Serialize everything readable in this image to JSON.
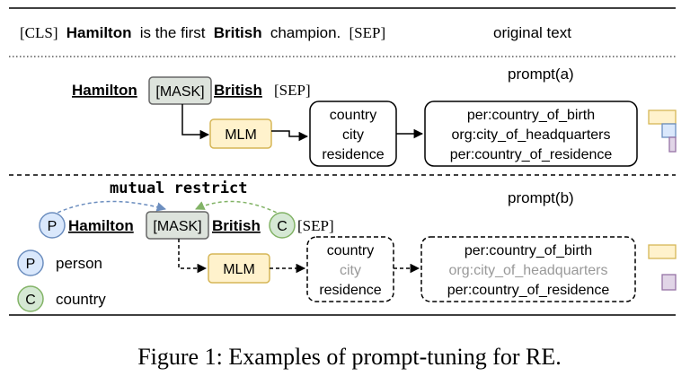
{
  "original": {
    "cls": "[CLS]",
    "w1": "Hamilton",
    "w2": "is the first",
    "w3": "British",
    "w4": "champion.",
    "sep": "[SEP]",
    "label": "original text"
  },
  "prompt_a": {
    "label": "prompt(a)",
    "subject": "Hamilton",
    "mask": "[MASK]",
    "object": "British",
    "sep": "[SEP]",
    "mlm": "MLM",
    "words": [
      "country",
      "city",
      "residence"
    ],
    "relations": [
      "per:country_of_birth",
      "org:city_of_headquarters",
      "per:country_of_residence"
    ]
  },
  "prompt_b": {
    "label": "prompt(b)",
    "mutual": "mutual restrict",
    "subject": "Hamilton",
    "mask": "[MASK]",
    "object": "British",
    "sep": "[SEP]",
    "mlm": "MLM",
    "p_letter": "P",
    "c_letter": "C",
    "words": [
      "country",
      "city",
      "residence"
    ],
    "relations": [
      "per:country_of_birth",
      "org:city_of_headquarters",
      "per:country_of_residence"
    ]
  },
  "legend": {
    "p_letter": "P",
    "p_label": "person",
    "c_letter": "C",
    "c_label": "country"
  },
  "caption": "Figure 1: Examples of prompt-tuning for RE.",
  "colors": {
    "mask_fill": "#dde3dc",
    "mlm_fill": "#fff2cc",
    "mlm_stroke": "#d6b656",
    "person_fill": "#dae8fc",
    "person_stroke": "#6c8ebf",
    "country_fill": "#d5e8d4",
    "country_stroke": "#82b366",
    "purple_fill": "#e1d5e7",
    "purple_stroke": "#9673a6",
    "faded_text": "#999999"
  }
}
